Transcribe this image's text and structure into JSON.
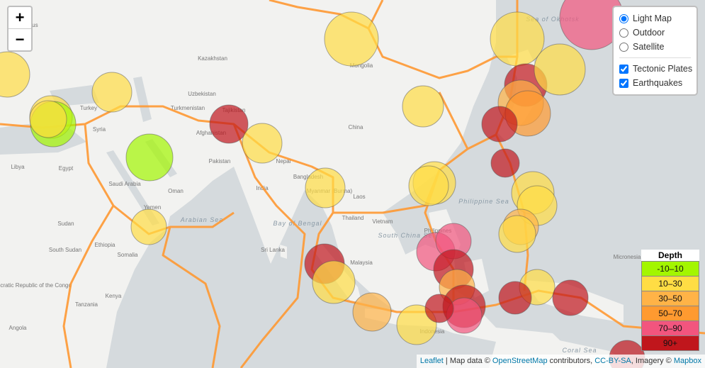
{
  "zoom": {
    "in": "+",
    "out": "−"
  },
  "layer_control": {
    "base_layers": [
      "Light Map",
      "Outdoor",
      "Satellite"
    ],
    "selected_base": 0,
    "overlays": [
      "Tectonic Plates",
      "Earthquakes"
    ],
    "overlays_checked": [
      true,
      true
    ]
  },
  "legend": {
    "title": "Depth",
    "items": [
      {
        "label": "-10–10",
        "color": "#a3f600"
      },
      {
        "label": "10–30",
        "color": "#ffdd44"
      },
      {
        "label": "30–50",
        "color": "#ffb347"
      },
      {
        "label": "50–70",
        "color": "#ff9a30"
      },
      {
        "label": "70–90",
        "color": "#f2557e"
      },
      {
        "label": "90+",
        "color": "#c0161c"
      }
    ]
  },
  "attribution": {
    "leaflet": "Leaflet",
    "sep": " | Map data © ",
    "osm": "OpenStreetMap",
    "contrib": " contributors, ",
    "license": "CC-BY-SA",
    "imagery": ", Imagery © ",
    "mapbox": "Mapbox"
  },
  "map_labels": [
    "Belarus",
    "Kazakhstan",
    "Mongolia",
    "Uzbekistan",
    "Turkmenistan",
    "Turkey",
    "Syria",
    "Tajikistan",
    "Afghanistan",
    "Pakistan",
    "Nepal",
    "China",
    "Libya",
    "Egypt",
    "Saudi Arabia",
    "Oman",
    "India",
    "Bangladesh",
    "Myanmar (Burma)",
    "Laos",
    "Thailand",
    "Vietnam",
    "Sudan",
    "South Sudan",
    "Ethiopia",
    "Somalia",
    "Kenya",
    "Tanzania",
    "Angola",
    "Democratic Republic of the Congo",
    "Yemen",
    "Arabian Sea",
    "Bay of Bengal",
    "Sri Lanka",
    "South China Sea",
    "Philippine Sea",
    "Philippines",
    "Malaysia",
    "Indonesia",
    "Sea of Okhotsk",
    "Micronesia",
    "Coral Sea"
  ]
}
